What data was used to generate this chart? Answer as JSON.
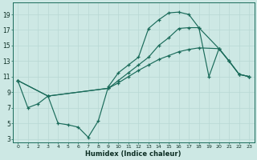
{
  "bg_color": "#cde8e4",
  "grid_color": "#b8d8d4",
  "line_color": "#1a6b5a",
  "xlabel": "Humidex (Indice chaleur)",
  "xlim_min": -0.5,
  "xlim_max": 23.5,
  "ylim_min": 2.5,
  "ylim_max": 20.5,
  "xticks": [
    0,
    1,
    2,
    3,
    4,
    5,
    6,
    7,
    8,
    9,
    10,
    11,
    12,
    13,
    14,
    15,
    16,
    17,
    18,
    19,
    20,
    21,
    22,
    23
  ],
  "yticks": [
    3,
    5,
    7,
    9,
    11,
    13,
    15,
    17,
    19
  ],
  "s1_x": [
    0,
    1,
    2,
    3,
    4,
    5,
    6,
    7,
    8,
    9,
    10,
    11,
    12,
    13,
    14,
    15,
    16,
    17,
    18,
    19,
    20,
    21,
    22,
    23
  ],
  "s1_y": [
    10.5,
    7.0,
    7.5,
    8.5,
    5.0,
    4.8,
    4.5,
    3.2,
    5.3,
    9.7,
    11.5,
    12.5,
    13.5,
    17.2,
    18.3,
    19.2,
    19.3,
    19.0,
    17.3,
    11.0,
    14.6,
    13.0,
    11.3,
    11.0
  ],
  "s2_x": [
    0,
    3,
    9,
    10,
    11,
    12,
    13,
    14,
    15,
    16,
    17,
    18,
    20,
    21,
    22,
    23
  ],
  "s2_y": [
    10.5,
    8.5,
    9.5,
    10.5,
    11.5,
    12.5,
    13.5,
    15.0,
    16.0,
    17.2,
    17.3,
    17.3,
    14.6,
    13.0,
    11.3,
    11.0
  ],
  "s3_x": [
    0,
    3,
    9,
    10,
    11,
    12,
    13,
    14,
    15,
    16,
    17,
    18,
    20,
    21,
    22,
    23
  ],
  "s3_y": [
    10.5,
    8.5,
    9.5,
    10.2,
    11.0,
    11.8,
    12.5,
    13.2,
    13.7,
    14.2,
    14.5,
    14.7,
    14.6,
    13.0,
    11.3,
    11.0
  ]
}
